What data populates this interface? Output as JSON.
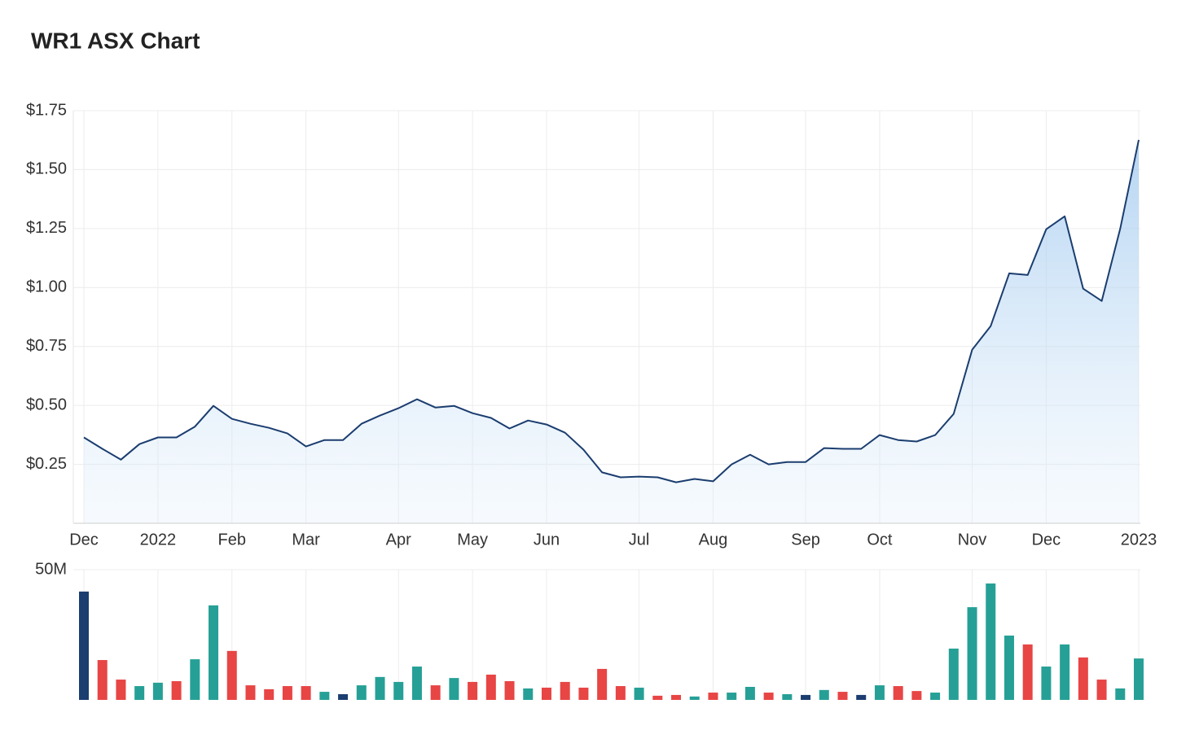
{
  "chart_data": [
    {
      "type": "area",
      "title": "WR1 ASX Chart",
      "color": "#1b3d6f",
      "grid": true,
      "categories": [
        "Dec",
        null,
        null,
        null,
        "2022",
        null,
        null,
        null,
        "Feb",
        null,
        null,
        null,
        "Mar",
        null,
        null,
        null,
        null,
        "Apr",
        null,
        null,
        null,
        "May",
        null,
        null,
        null,
        "Jun",
        null,
        null,
        null,
        null,
        "Jul",
        null,
        null,
        null,
        "Aug",
        null,
        null,
        null,
        null,
        "Sep",
        null,
        null,
        null,
        "Oct",
        null,
        null,
        null,
        null,
        "Nov",
        null,
        null,
        null,
        "Dec",
        null,
        null,
        null,
        null,
        "2023"
      ],
      "values": [
        0.364,
        0.316,
        0.27,
        0.336,
        0.364,
        0.364,
        0.41,
        0.498,
        0.443,
        0.422,
        0.405,
        0.381,
        0.326,
        0.353,
        0.353,
        0.422,
        0.457,
        0.488,
        0.526,
        0.491,
        0.498,
        0.467,
        0.447,
        0.402,
        0.436,
        0.419,
        0.384,
        0.312,
        0.216,
        0.195,
        0.198,
        0.195,
        0.174,
        0.188,
        0.178,
        0.25,
        0.291,
        0.25,
        0.26,
        0.26,
        0.319,
        0.316,
        0.316,
        0.374,
        0.353,
        0.347,
        0.374,
        0.464,
        0.736,
        0.836,
        1.06,
        1.053,
        1.247,
        1.302,
        0.995,
        0.943,
        1.25,
        1.626
      ],
      "ylim": [
        0,
        1.75
      ],
      "yticks": [
        {
          "value": 0.25,
          "label": "$0.25"
        },
        {
          "value": 0.5,
          "label": "$0.50"
        },
        {
          "value": 0.75,
          "label": "$0.75"
        },
        {
          "value": 1.0,
          "label": "$1.00"
        },
        {
          "value": 1.25,
          "label": "$1.25"
        },
        {
          "value": 1.5,
          "label": "$1.50"
        },
        {
          "value": 1.75,
          "label": "$1.75"
        }
      ]
    },
    {
      "type": "bar",
      "grid": true,
      "values": [
        41600000,
        15300000,
        7800000,
        5300000,
        6600000,
        7200000,
        15600000,
        36300000,
        18800000,
        5600000,
        4100000,
        5300000,
        5300000,
        3100000,
        2200000,
        5600000,
        8800000,
        6900000,
        12800000,
        5600000,
        8400000,
        6900000,
        9700000,
        7200000,
        4400000,
        4700000,
        6900000,
        4700000,
        11900000,
        5300000,
        4700000,
        1600000,
        1900000,
        1300000,
        2800000,
        2800000,
        5000000,
        2800000,
        2200000,
        1900000,
        3800000,
        3100000,
        1900000,
        5600000,
        5300000,
        3400000,
        2800000,
        19700000,
        35600000,
        44700000,
        24700000,
        21300000,
        12800000,
        21300000,
        16300000,
        7800000,
        4400000,
        15900000
      ],
      "colors": [
        "#1b3d6f",
        "#e84545",
        "#e84545",
        "#26a096",
        "#26a096",
        "#e84545",
        "#26a096",
        "#26a096",
        "#e84545",
        "#e84545",
        "#e84545",
        "#e84545",
        "#e84545",
        "#26a096",
        "#1b3d6f",
        "#26a096",
        "#26a096",
        "#26a096",
        "#26a096",
        "#e84545",
        "#26a096",
        "#e84545",
        "#e84545",
        "#e84545",
        "#26a096",
        "#e84545",
        "#e84545",
        "#e84545",
        "#e84545",
        "#e84545",
        "#26a096",
        "#e84545",
        "#e84545",
        "#26a096",
        "#e84545",
        "#26a096",
        "#26a096",
        "#e84545",
        "#26a096",
        "#1b3d6f",
        "#26a096",
        "#e84545",
        "#1b3d6f",
        "#26a096",
        "#e84545",
        "#e84545",
        "#26a096",
        "#26a096",
        "#26a096",
        "#26a096",
        "#26a096",
        "#e84545",
        "#26a096",
        "#26a096",
        "#e84545",
        "#e84545",
        "#26a096",
        "#26a096"
      ],
      "ylim": [
        0,
        50000000
      ],
      "yticks": [
        {
          "value": 50000000,
          "label": "50M"
        }
      ]
    }
  ]
}
